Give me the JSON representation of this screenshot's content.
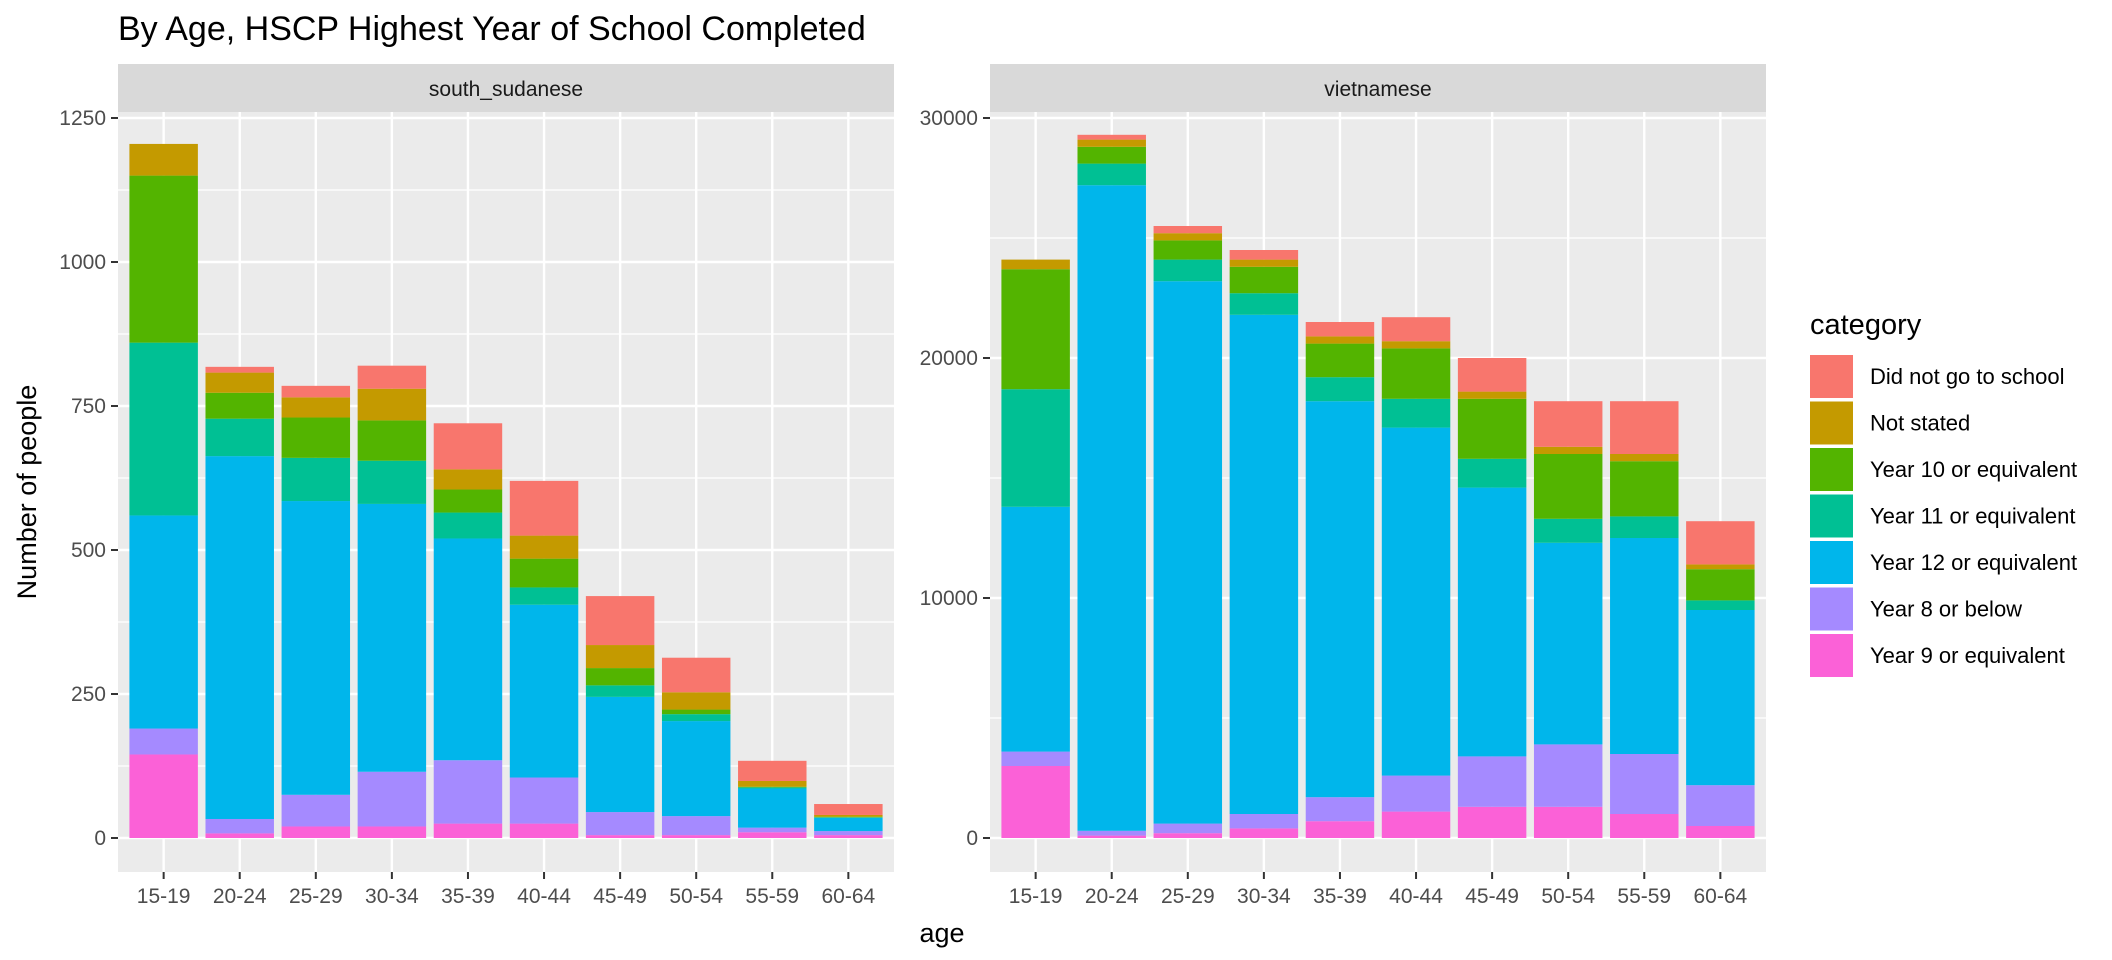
{
  "chart_data": {
    "type": "bar",
    "stacked": true,
    "title": "By Age,  HSCP Highest Year of School Completed",
    "xlabel": "age",
    "ylabel": "Number of people",
    "categories": [
      "15-19",
      "20-24",
      "25-29",
      "30-34",
      "35-39",
      "40-44",
      "45-49",
      "50-54",
      "55-59",
      "60-64"
    ],
    "legend": {
      "title": "category",
      "position": "right",
      "entries": [
        {
          "name": "Did not go to school",
          "color": "#F8766D"
        },
        {
          "name": "Not stated",
          "color": "#C49A00"
        },
        {
          "name": "Year 10 or equivalent",
          "color": "#53B400"
        },
        {
          "name": "Year 11 or equivalent",
          "color": "#00C094"
        },
        {
          "name": "Year 12 or equivalent",
          "color": "#00B6EB"
        },
        {
          "name": "Year 8 or below",
          "color": "#A58AFF"
        },
        {
          "name": "Year 9 or equivalent",
          "color": "#FB61D7"
        }
      ]
    },
    "stack_order_bottom_to_top": [
      "Year 9 or equivalent",
      "Year 8 or below",
      "Year 12 or equivalent",
      "Year 11 or equivalent",
      "Year 10 or equivalent",
      "Not stated",
      "Did not go to school"
    ],
    "panels": [
      {
        "name": "south_sudanese",
        "ylim": [
          0,
          1250
        ],
        "yticks": [
          0,
          250,
          500,
          750,
          1000,
          1250
        ],
        "series": [
          {
            "name": "Year 9 or equivalent",
            "values": [
              145,
              8,
              20,
              20,
              25,
              25,
              5,
              5,
              10,
              5
            ]
          },
          {
            "name": "Year 8 or below",
            "values": [
              45,
              25,
              55,
              95,
              110,
              80,
              40,
              33,
              8,
              7
            ]
          },
          {
            "name": "Year 12 or equivalent",
            "values": [
              370,
              630,
              510,
              465,
              385,
              300,
              200,
              165,
              68,
              23
            ]
          },
          {
            "name": "Year 11 or equivalent",
            "values": [
              300,
              65,
              75,
              75,
              45,
              30,
              20,
              12,
              2,
              1
            ]
          },
          {
            "name": "Year 10 or equivalent",
            "values": [
              290,
              45,
              70,
              70,
              40,
              50,
              30,
              8,
              1,
              1
            ]
          },
          {
            "name": "Not stated",
            "values": [
              55,
              35,
              35,
              55,
              35,
              40,
              40,
              30,
              10,
              3
            ]
          },
          {
            "name": "Did not go to school",
            "values": [
              0,
              10,
              20,
              40,
              80,
              95,
              85,
              60,
              35,
              19
            ]
          }
        ]
      },
      {
        "name": "vietnamese",
        "ylim": [
          0,
          30000
        ],
        "yticks": [
          0,
          10000,
          20000,
          30000
        ],
        "series": [
          {
            "name": "Year 9 or equivalent",
            "values": [
              3000,
              100,
              200,
              400,
              700,
              1100,
              1300,
              1300,
              1000,
              500
            ]
          },
          {
            "name": "Year 8 or below",
            "values": [
              600,
              200,
              400,
              600,
              1000,
              1500,
              2100,
              2600,
              2500,
              1700
            ]
          },
          {
            "name": "Year 12 or equivalent",
            "values": [
              10200,
              26900,
              22600,
              20800,
              16500,
              14500,
              11200,
              8400,
              9000,
              7300
            ]
          },
          {
            "name": "Year 11 or equivalent",
            "values": [
              4900,
              900,
              900,
              900,
              1000,
              1200,
              1200,
              1000,
              900,
              400
            ]
          },
          {
            "name": "Year 10 or equivalent",
            "values": [
              5000,
              700,
              800,
              1100,
              1400,
              2100,
              2500,
              2700,
              2300,
              1300
            ]
          },
          {
            "name": "Not stated",
            "values": [
              400,
              300,
              300,
              300,
              300,
              300,
              300,
              300,
              300,
              200
            ]
          },
          {
            "name": "Did not go to school",
            "values": [
              0,
              200,
              300,
              400,
              600,
              1000,
              1400,
              1900,
              2200,
              1800
            ]
          }
        ]
      }
    ]
  }
}
